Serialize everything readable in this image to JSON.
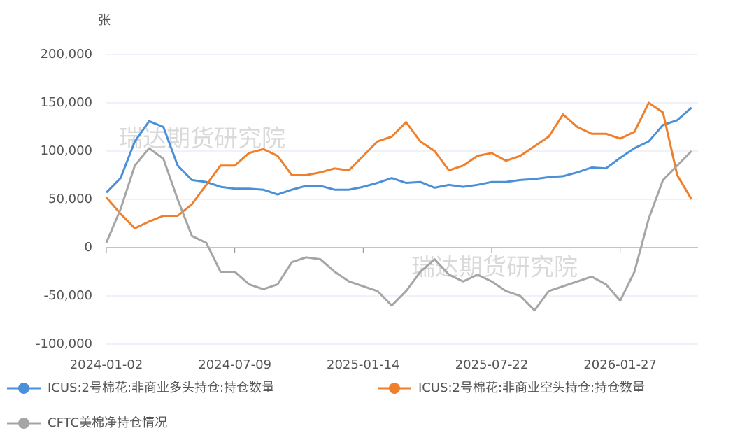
{
  "chart_data": {
    "type": "line",
    "y_label": "张",
    "watermark": "瑞达期货研究院",
    "categories": [
      "2024-01-02",
      null,
      null,
      null,
      null,
      null,
      null,
      null,
      null,
      "2024-07-09",
      null,
      null,
      null,
      null,
      null,
      null,
      null,
      null,
      "2025-01-14",
      null,
      null,
      null,
      null,
      null,
      null,
      null,
      null,
      "2025-07-22",
      null,
      null,
      null,
      null,
      null,
      null,
      null,
      null,
      "2026-01-27",
      null,
      null,
      null,
      null,
      null
    ],
    "series": [
      {
        "name": "ICUS:2号棉花:非商业多头持仓:持仓数量",
        "color": "#4a90d9",
        "values": [
          57000,
          72000,
          110000,
          131000,
          125000,
          85000,
          70000,
          68000,
          63000,
          61000,
          61000,
          60000,
          55000,
          60000,
          64000,
          64000,
          60000,
          60000,
          63000,
          67000,
          72000,
          67000,
          68000,
          62000,
          65000,
          63000,
          65000,
          68000,
          68000,
          70000,
          71000,
          73000,
          74000,
          78000,
          83000,
          82000,
          93000,
          103000,
          110000,
          127000,
          132000,
          145000
        ]
      },
      {
        "name": "ICUS:2号棉花:非商业空头持仓:持仓数量",
        "color": "#f07f2b",
        "values": [
          52000,
          35000,
          20000,
          27000,
          33000,
          33000,
          45000,
          65000,
          85000,
          85000,
          98000,
          102000,
          95000,
          75000,
          75000,
          78000,
          82000,
          80000,
          95000,
          110000,
          115000,
          130000,
          110000,
          100000,
          80000,
          85000,
          95000,
          98000,
          90000,
          95000,
          105000,
          115000,
          138000,
          125000,
          118000,
          118000,
          113000,
          120000,
          150000,
          140000,
          75000,
          50000
        ]
      },
      {
        "name": "CFTC美棉净持仓情况",
        "color": "#a5a5a5",
        "values": [
          5000,
          40000,
          85000,
          103000,
          92000,
          50000,
          12000,
          5000,
          -25000,
          -25000,
          -38000,
          -43000,
          -38000,
          -15000,
          -10000,
          -12000,
          -25000,
          -35000,
          -40000,
          -45000,
          -60000,
          -45000,
          -25000,
          -12000,
          -28000,
          -35000,
          -28000,
          -35000,
          -45000,
          -50000,
          -65000,
          -45000,
          -40000,
          -35000,
          -30000,
          -38000,
          -55000,
          -25000,
          30000,
          70000,
          85000,
          100000
        ]
      }
    ],
    "ylim": [
      -100000,
      200000
    ],
    "yticks": [
      {
        "value": -100000,
        "label": "-100,000"
      },
      {
        "value": -50000,
        "label": "-50,000"
      },
      0,
      {
        "value": 50000,
        "label": "50,000"
      },
      {
        "value": 100000,
        "label": "100,000"
      },
      {
        "value": 150000,
        "label": "150,000"
      },
      {
        "value": 200000,
        "label": "200,000"
      }
    ],
    "grid": true
  }
}
